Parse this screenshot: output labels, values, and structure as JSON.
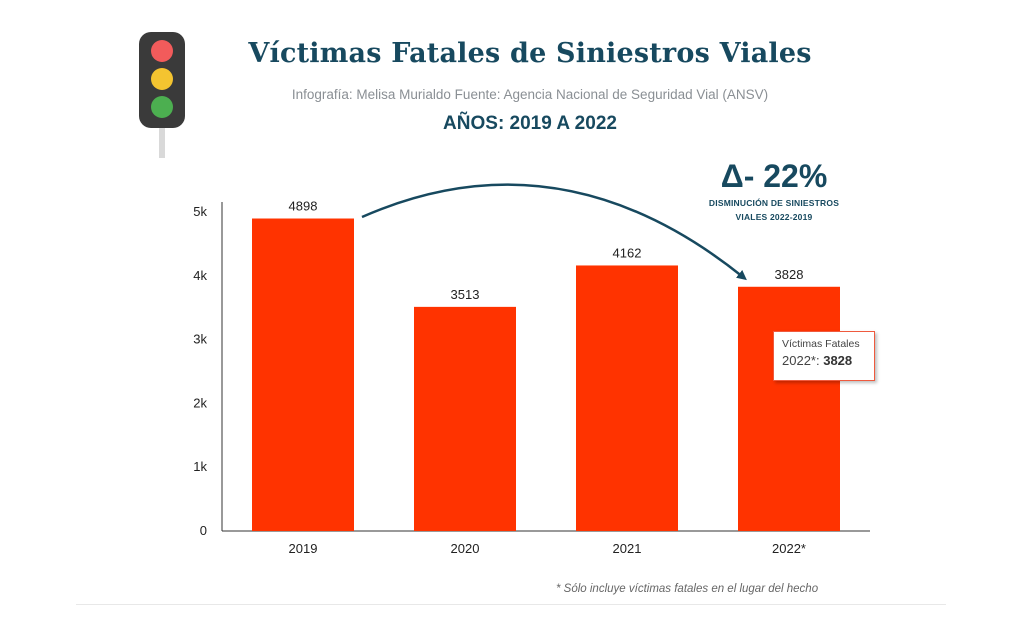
{
  "header": {
    "title": "Víctimas Fatales de Siniestros Viales",
    "subtitle": "Infografía: Melisa Murialdo Fuente: Agencia Nacional de Seguridad Vial (ANSV)",
    "years": "AÑOS: 2019 A 2022"
  },
  "traffic_light": {
    "icon": "traffic-light-icon",
    "colors": {
      "red": "#f25b5b",
      "yellow": "#f4c430",
      "green": "#4caf50",
      "body": "#3a3a3a"
    }
  },
  "delta": {
    "value": "Δ- 22%",
    "caption_line1": "DISMINUCIÓN DE SINIESTROS",
    "caption_line2": "VIALES 2022-2019"
  },
  "tooltip": {
    "series": "Víctimas Fatales",
    "category": "2022*",
    "value": "3828"
  },
  "footnote": "* Sólo incluye víctimas fatales en el lugar del hecho",
  "colors": {
    "bar": "#ff3300",
    "title": "#17495f",
    "arrow": "#17495f"
  },
  "chart_data": {
    "type": "bar",
    "categories": [
      "2019",
      "2020",
      "2021",
      "2022*"
    ],
    "series": [
      {
        "name": "Víctimas Fatales",
        "values": [
          4898,
          3513,
          4162,
          3828
        ]
      }
    ],
    "data_labels": [
      "4898",
      "3513",
      "4162",
      "3828"
    ],
    "yticks": [
      {
        "value": 0,
        "label": "0"
      },
      {
        "value": 1000,
        "label": "1k"
      },
      {
        "value": 2000,
        "label": "2k"
      },
      {
        "value": 3000,
        "label": "3k"
      },
      {
        "value": 4000,
        "label": "4k"
      },
      {
        "value": 5000,
        "label": "5k"
      }
    ],
    "ylim": [
      0,
      5000
    ],
    "grid": false,
    "annotation": {
      "type": "arrow",
      "from": "2019",
      "to": "2022*"
    }
  }
}
